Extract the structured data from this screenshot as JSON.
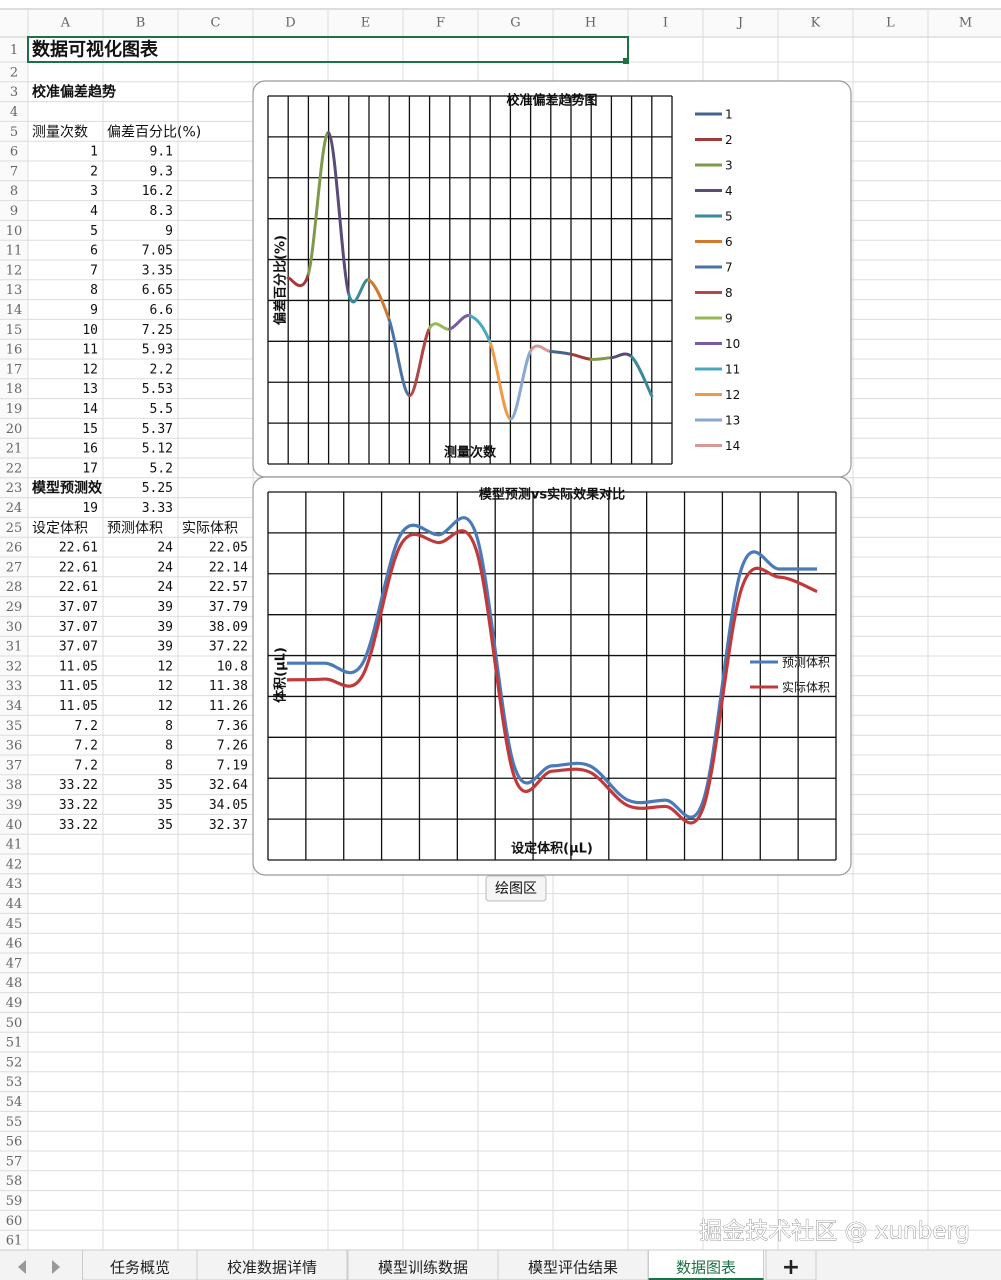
{
  "sheet": {
    "columns": [
      "A",
      "B",
      "C",
      "D",
      "E",
      "F",
      "G",
      "H",
      "I",
      "J",
      "K",
      "L",
      "M"
    ],
    "row_numbers": [
      1,
      2,
      3,
      4,
      5,
      6,
      7,
      8,
      9,
      10,
      11,
      12,
      13,
      14,
      15,
      16,
      17,
      18,
      19,
      20,
      21,
      22,
      23,
      24,
      25,
      26,
      27,
      28,
      29,
      30,
      31,
      32,
      33,
      34,
      35,
      36,
      37,
      38,
      39,
      40,
      41,
      42,
      43,
      44,
      45,
      46,
      47,
      48,
      49,
      50,
      51,
      52,
      53,
      54,
      55,
      56,
      57,
      58,
      59,
      60,
      61
    ],
    "rows": [
      [
        "数据可视化图表"
      ],
      null,
      [
        "校准偏差趋势"
      ],
      null,
      [
        "测量次数",
        "偏差百分比(%)"
      ],
      [
        1,
        9.1
      ],
      [
        2,
        9.3
      ],
      [
        3,
        16.2
      ],
      [
        4,
        8.3
      ],
      [
        5,
        9
      ],
      [
        6,
        7.05
      ],
      [
        7,
        3.35
      ],
      [
        8,
        6.65
      ],
      [
        9,
        6.6
      ],
      [
        10,
        7.25
      ],
      [
        11,
        5.93
      ],
      [
        12,
        2.2
      ],
      [
        13,
        5.53
      ],
      [
        14,
        5.5
      ],
      [
        15,
        5.37
      ],
      [
        16,
        5.12
      ],
      [
        17,
        5.2
      ],
      [
        "模型预测效",
        5.25
      ],
      [
        19,
        3.33
      ],
      [
        "设定体积",
        "预测体积",
        "实际体积"
      ],
      [
        22.61,
        24,
        22.05
      ],
      [
        22.61,
        24,
        22.14
      ],
      [
        22.61,
        24,
        22.57
      ],
      [
        37.07,
        39,
        37.79
      ],
      [
        37.07,
        39,
        38.09
      ],
      [
        37.07,
        39,
        37.22
      ],
      [
        11.05,
        12,
        10.8
      ],
      [
        11.05,
        12,
        11.38
      ],
      [
        11.05,
        12,
        11.26
      ],
      [
        7.2,
        8,
        7.36
      ],
      [
        7.2,
        8,
        7.26
      ],
      [
        7.2,
        8,
        7.19
      ],
      [
        33.22,
        35,
        32.64
      ],
      [
        33.22,
        35,
        34.05
      ],
      [
        33.22,
        35,
        32.37
      ],
      null,
      null,
      null,
      null,
      null,
      null,
      null,
      null,
      null,
      null,
      null,
      null,
      null,
      null,
      null,
      null,
      null,
      null,
      null,
      null,
      null
    ]
  },
  "chart_data": [
    {
      "type": "line",
      "title": "校准偏差趋势图",
      "x_label": "测量次数",
      "y_label": "偏差百分比(%)",
      "values": [
        9.1,
        9.3,
        16.2,
        8.3,
        9,
        7.05,
        3.35,
        6.65,
        6.6,
        7.25,
        5.93,
        2.2,
        5.53,
        5.5,
        5.37,
        5.12,
        5.2,
        5.25,
        3.33
      ],
      "ylim": [
        0,
        18
      ],
      "grid": true,
      "legend": [
        {
          "name": "1",
          "color": "#44638f"
        },
        {
          "name": "2",
          "color": "#a33a3a"
        },
        {
          "name": "3",
          "color": "#7e9a4a"
        },
        {
          "name": "4",
          "color": "#5a4a7a"
        },
        {
          "name": "5",
          "color": "#3a8a9a"
        },
        {
          "name": "6",
          "color": "#d07a30"
        },
        {
          "name": "7",
          "color": "#4a72a8"
        },
        {
          "name": "8",
          "color": "#b04848"
        },
        {
          "name": "9",
          "color": "#98b858"
        },
        {
          "name": "10",
          "color": "#7a5aa0"
        },
        {
          "name": "11",
          "color": "#48a8c0"
        },
        {
          "name": "12",
          "color": "#f09a48"
        },
        {
          "name": "13",
          "color": "#8aa8d0"
        },
        {
          "name": "14",
          "color": "#d89898"
        }
      ]
    },
    {
      "type": "line",
      "title": "模型预测vs实际效果对比",
      "x_label": "设定体积(μL)",
      "y_label": "体积(μL)",
      "ylim": [
        1,
        44
      ],
      "grid": true,
      "series": [
        {
          "name": "预测体积",
          "color": "#4a7ab8",
          "values": [
            24,
            24,
            24,
            39,
            39,
            39,
            12,
            12,
            12,
            8,
            8,
            8,
            35,
            35,
            35
          ]
        },
        {
          "name": "实际体积",
          "color": "#c0393b",
          "values": [
            22.05,
            22.14,
            22.57,
            37.79,
            38.09,
            37.22,
            10.8,
            11.38,
            11.26,
            7.36,
            7.26,
            7.19,
            32.64,
            34.05,
            32.37
          ]
        }
      ]
    }
  ],
  "tooltip": "绘图区",
  "tabs": [
    "任务概览",
    "校准数据详情",
    "模型训练数据",
    "模型评估结果",
    "数据图表",
    "+"
  ],
  "watermark": "掘金技术社区 @ xunberg"
}
